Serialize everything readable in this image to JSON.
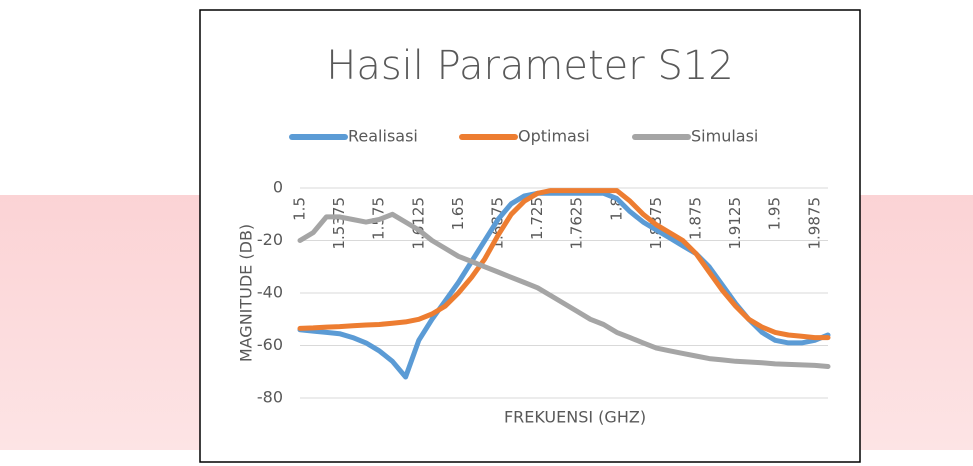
{
  "chart_data": {
    "type": "line",
    "title": "Hasil Parameter S12",
    "x_label": "FREKUENSI (GHZ)",
    "y_label": "MAGNITUDE (DB)",
    "categories": [
      "1.5",
      null,
      null,
      "1.5375",
      null,
      null,
      "1.575",
      null,
      null,
      "1.6125",
      null,
      null,
      "1.65",
      null,
      null,
      "1.6875",
      null,
      null,
      "1.725",
      null,
      null,
      "1.7625",
      null,
      null,
      "1.8",
      null,
      null,
      "1.8375",
      null,
      null,
      "1.875",
      null,
      null,
      "1.9125",
      null,
      null,
      "1.95",
      null,
      null,
      "1.9875",
      null
    ],
    "series": [
      {
        "name": "Realisasi",
        "color": "#5b9bd5",
        "values": [
          -54,
          -54.5,
          -55,
          -55.5,
          -57,
          -59,
          -62,
          -66,
          -72,
          -58,
          -50,
          -43,
          -36,
          -28,
          -20,
          -12,
          -6,
          -3,
          -2,
          -2,
          -2,
          -2,
          -2,
          -2,
          -4,
          -9,
          -13,
          -16,
          -19,
          -22,
          -25,
          -30,
          -37,
          -44,
          -50,
          -55,
          -58,
          -59,
          -59,
          -58,
          -56
        ]
      },
      {
        "name": "Optimasi",
        "color": "#ed7d31",
        "values": [
          -53.5,
          -53.3,
          -53,
          -52.8,
          -52.5,
          -52.2,
          -52,
          -51.5,
          -51,
          -50,
          -48,
          -45,
          -40,
          -34,
          -27,
          -18,
          -10,
          -5,
          -2,
          -1,
          -1,
          -1,
          -1,
          -1,
          -1,
          -5,
          -10,
          -14,
          -17,
          -20,
          -25,
          -32,
          -39,
          -45,
          -50,
          -53,
          -55,
          -56,
          -56.5,
          -57,
          -57
        ]
      },
      {
        "name": "Simulasi",
        "color": "#a5a5a5",
        "values": [
          -20,
          -17,
          -11,
          -11,
          -12,
          -13,
          -12,
          -10,
          -13,
          -16,
          -20,
          -23,
          -26,
          -28,
          -30,
          -32,
          -34,
          -36,
          -38,
          -41,
          -44,
          -47,
          -50,
          -52,
          -55,
          -57,
          -59,
          -61,
          -62,
          -63,
          -64,
          -65,
          -65.5,
          -66,
          -66.3,
          -66.6,
          -67,
          -67.2,
          -67.4,
          -67.6,
          -68
        ]
      }
    ],
    "ylim": [
      -80,
      0
    ],
    "yticks": [
      0,
      -20,
      -40,
      -60,
      -80
    ],
    "grid": true,
    "legend": "top"
  }
}
